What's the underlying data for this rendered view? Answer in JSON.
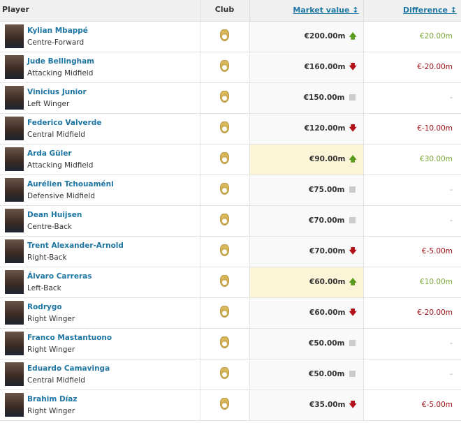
{
  "header": {
    "player": "Player",
    "club": "Club",
    "market_value": "Market value ↕",
    "difference": "Difference ↕"
  },
  "colors": {
    "link": "#1d75a3",
    "up": "#5b9c1e",
    "down": "#b3101a",
    "highlight": "#fcf4d6"
  },
  "rows": [
    {
      "name": "Kylian Mbappé",
      "position": "Centre-Forward",
      "club_icon": "real-madrid-crest",
      "value": "€200.00m",
      "trend": "up",
      "diff": "€20.00m",
      "highlight": false
    },
    {
      "name": "Jude Bellingham",
      "position": "Attacking Midfield",
      "club_icon": "real-madrid-crest",
      "value": "€160.00m",
      "trend": "down",
      "diff": "€-20.00m",
      "highlight": false
    },
    {
      "name": "Vinicius Junior",
      "position": "Left Winger",
      "club_icon": "real-madrid-crest",
      "value": "€150.00m",
      "trend": "same",
      "diff": "-",
      "highlight": false
    },
    {
      "name": "Federico Valverde",
      "position": "Central Midfield",
      "club_icon": "real-madrid-crest",
      "value": "€120.00m",
      "trend": "down",
      "diff": "€-10.00m",
      "highlight": false
    },
    {
      "name": "Arda Güler",
      "position": "Attacking Midfield",
      "club_icon": "real-madrid-crest",
      "value": "€90.00m",
      "trend": "up",
      "diff": "€30.00m",
      "highlight": true
    },
    {
      "name": "Aurélien Tchouaméni",
      "position": "Defensive Midfield",
      "club_icon": "real-madrid-crest",
      "value": "€75.00m",
      "trend": "same",
      "diff": "-",
      "highlight": false
    },
    {
      "name": "Dean Huijsen",
      "position": "Centre-Back",
      "club_icon": "real-madrid-crest",
      "value": "€70.00m",
      "trend": "same",
      "diff": "-",
      "highlight": false
    },
    {
      "name": "Trent Alexander-Arnold",
      "position": "Right-Back",
      "club_icon": "real-madrid-crest",
      "value": "€70.00m",
      "trend": "down",
      "diff": "€-5.00m",
      "highlight": false
    },
    {
      "name": "Álvaro Carreras",
      "position": "Left-Back",
      "club_icon": "real-madrid-crest",
      "value": "€60.00m",
      "trend": "up",
      "diff": "€10.00m",
      "highlight": true
    },
    {
      "name": "Rodrygo",
      "position": "Right Winger",
      "club_icon": "real-madrid-crest",
      "value": "€60.00m",
      "trend": "down",
      "diff": "€-20.00m",
      "highlight": false
    },
    {
      "name": "Franco Mastantuono",
      "position": "Right Winger",
      "club_icon": "real-madrid-crest",
      "value": "€50.00m",
      "trend": "same",
      "diff": "-",
      "highlight": false
    },
    {
      "name": "Eduardo Camavinga",
      "position": "Central Midfield",
      "club_icon": "real-madrid-crest",
      "value": "€50.00m",
      "trend": "same",
      "diff": "-",
      "highlight": false
    },
    {
      "name": "Brahim Díaz",
      "position": "Right Winger",
      "club_icon": "real-madrid-crest",
      "value": "€35.00m",
      "trend": "down",
      "diff": "€-5.00m",
      "highlight": false
    }
  ]
}
